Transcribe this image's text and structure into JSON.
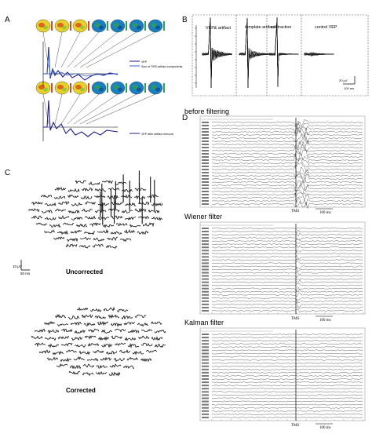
{
  "panel_labels": {
    "a": "A",
    "b": "B",
    "c": "C",
    "d": "D"
  },
  "panel_a": {
    "legend_top": [
      "VEP",
      "Sum of TMS-artifact components"
    ],
    "legend_bottom": [
      "VEP after artifact removal"
    ],
    "colors": {
      "vep": "#1d1d8a",
      "component": "#3366cc",
      "map_hot": "#e8d22a",
      "map_cool": "#1a7fc0"
    }
  },
  "panel_b": {
    "columns": [
      "VEP& artifact",
      "template artifact",
      "subtraction",
      "control VEP"
    ],
    "scale_amp": "20 µV",
    "scale_time": "100 ms"
  },
  "panel_c": {
    "scale_amp": "10 µV",
    "scale_time": "50 ms",
    "title_uncorrected": "Uncorrected",
    "title_corrected": "Corrected"
  },
  "panel_d": {
    "titles": [
      "before filtering",
      "Wiener filter",
      "Kalman filter"
    ],
    "tms_label": "TMS",
    "scale_time": "100 ms"
  }
}
